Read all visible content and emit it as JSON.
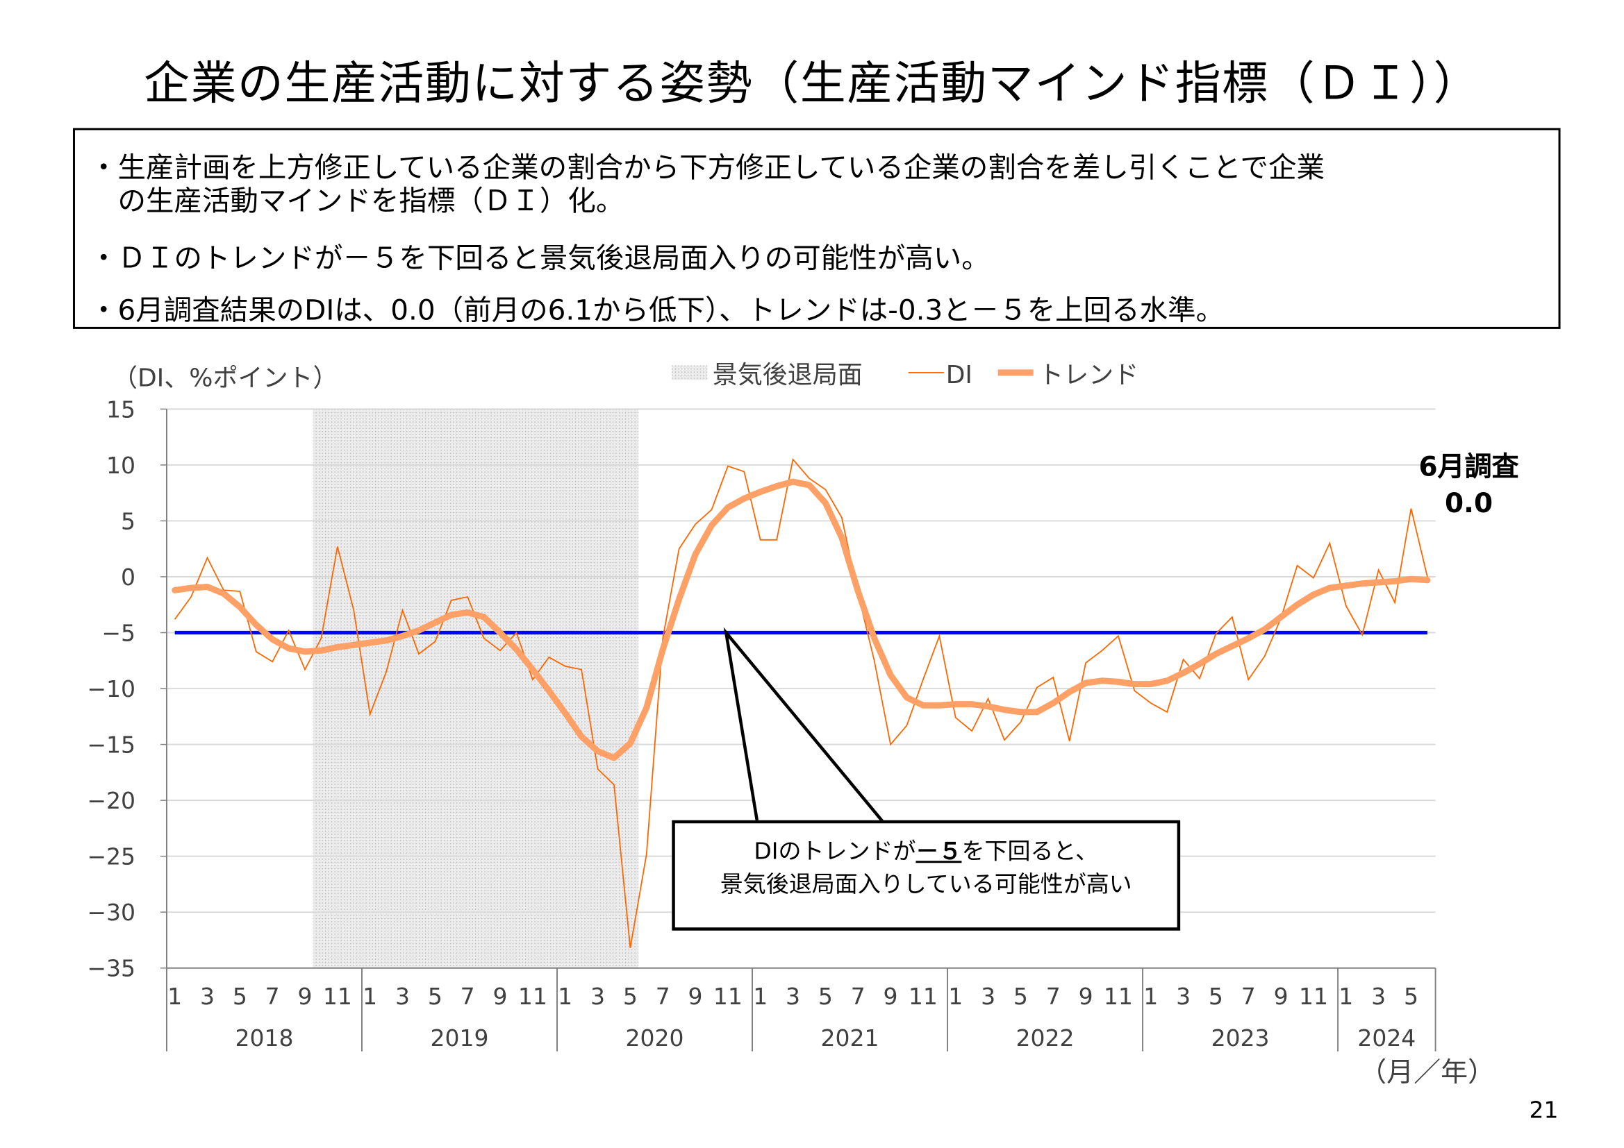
{
  "title": "企業の生産活動に対する姿勢（生産活動マインド指標（ＤＩ））",
  "summary": [
    "・生産計画を上方修正している企業の割合から下方修正している企業の割合を差し引くことで企業",
    "　の生産活動マインドを指標（ＤＩ）化。",
    "・ＤＩのトレンドが－５を下回ると景気後退局面入りの可能性が高い。",
    "・6月調査結果のDIは、0.0（前月の6.1から低下）、トレンドは-0.3と－５を上回る水準。"
  ],
  "annotation": {
    "line1": "6月調査",
    "line2": "0.0"
  },
  "callout": {
    "pre": "DIのトレンドが",
    "underlined": "－５",
    "post": "を下回ると、",
    "line2": "景気後退局面入りしている可能性が高い"
  },
  "page_number": "21",
  "chart_data": {
    "type": "line",
    "ylabel": "（DI、%ポイント）",
    "xlabel": "（月／年）",
    "ylim": [
      -35,
      15
    ],
    "yticks": [
      15,
      10,
      5,
      0,
      -5,
      -10,
      -15,
      -20,
      -25,
      -30,
      -35
    ],
    "grid": true,
    "legend_placement": "top",
    "years": [
      "2018",
      "2019",
      "2020",
      "2021",
      "2022",
      "2023",
      "2024"
    ],
    "month_ticks": [
      "1",
      "3",
      "5",
      "7",
      "9",
      "11"
    ],
    "start": "2018-01",
    "end": "2024-06",
    "recession": {
      "name": "景気後退局面",
      "from": "2018-10",
      "to": "2020-05",
      "color": "#d9d9d9"
    },
    "threshold": {
      "value": -5,
      "color": "#0000ff"
    },
    "series": [
      {
        "name": "DI",
        "color": "#ff6600",
        "values": [
          -3.8,
          -1.8,
          1.7,
          -1.2,
          -1.3,
          -6.7,
          -7.6,
          -4.8,
          -8.3,
          -5.5,
          2.7,
          -3,
          -12.3,
          -8.5,
          -3,
          -6.9,
          -5.8,
          -2.1,
          -1.8,
          -5.5,
          -6.6,
          -5,
          -9.2,
          -7.2,
          -8,
          -8.3,
          -17.2,
          -18.6,
          -33.2,
          -24.8,
          -5.5,
          2.5,
          4.7,
          6,
          9.9,
          9.4,
          3.3,
          3.3,
          10.5,
          8.8,
          7.8,
          5.3,
          -1.5,
          -7.5,
          -15,
          -13.3,
          -9.2,
          -5.3,
          -12.6,
          -13.8,
          -10.9,
          -14.6,
          -13,
          -9.9,
          -9,
          -14.7,
          -7.7,
          -6.6,
          -5.3,
          -10.2,
          -11.3,
          -12.1,
          -7.4,
          -9.1,
          -5.1,
          -3.6,
          -9.2,
          -7.1,
          -3.7,
          1.0,
          -0.1,
          3,
          -2.6,
          -5.2,
          0.6,
          -2.3,
          6.1,
          0.0
        ]
      },
      {
        "name": "トレンド",
        "color": "#ffa066",
        "values": [
          -1.2,
          -1,
          -0.9,
          -1.5,
          -2.7,
          -4.3,
          -5.6,
          -6.4,
          -6.7,
          -6.6,
          -6.3,
          -6.1,
          -5.9,
          -5.7,
          -5.3,
          -4.8,
          -4.1,
          -3.4,
          -3.2,
          -3.6,
          -5,
          -6.5,
          -8.3,
          -10.2,
          -12.2,
          -14.3,
          -15.6,
          -16.2,
          -14.9,
          -11.7,
          -6.5,
          -2,
          2,
          4.6,
          6.2,
          7,
          7.6,
          8.1,
          8.5,
          8.2,
          6.6,
          3.5,
          -1.3,
          -5.5,
          -8.8,
          -10.8,
          -11.5,
          -11.5,
          -11.4,
          -11.4,
          -11.6,
          -11.9,
          -12.1,
          -12.1,
          -11.3,
          -10.3,
          -9.5,
          -9.3,
          -9.4,
          -9.6,
          -9.6,
          -9.3,
          -8.6,
          -7.8,
          -6.9,
          -6.2,
          -5.5,
          -4.7,
          -3.6,
          -2.5,
          -1.6,
          -1.0,
          -0.8,
          -0.6,
          -0.5,
          -0.4,
          -0.2,
          -0.3
        ]
      }
    ]
  }
}
